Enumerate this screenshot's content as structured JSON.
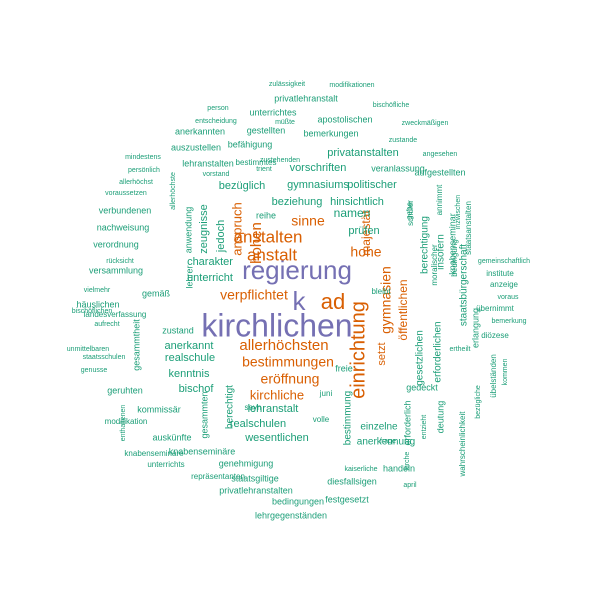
{
  "colors": {
    "large": "#7570B3",
    "medium": "#D95F02",
    "small": "#1B9E77"
  },
  "words": [
    {
      "text": "kirchlichen",
      "tier": "large"
    },
    {
      "text": "regierung",
      "tier": "large"
    },
    {
      "text": "k",
      "tier": "large"
    },
    {
      "text": "ad",
      "tier": "medium"
    },
    {
      "text": "einrichtung",
      "tier": "medium"
    },
    {
      "text": "anstalt",
      "tier": "medium"
    },
    {
      "text": "anstalten",
      "tier": "medium"
    },
    {
      "text": "hohen",
      "tier": "medium"
    },
    {
      "text": "verpflichtet",
      "tier": "medium"
    },
    {
      "text": "allerhöchsten",
      "tier": "medium"
    },
    {
      "text": "bestimmungen",
      "tier": "medium"
    },
    {
      "text": "eröffnung",
      "tier": "medium"
    },
    {
      "text": "gymnasien",
      "tier": "medium"
    },
    {
      "text": "kirchliche",
      "tier": "medium"
    },
    {
      "text": "sinne",
      "tier": "medium"
    },
    {
      "text": "hohe",
      "tier": "medium"
    },
    {
      "text": "anspruch",
      "tier": "medium"
    },
    {
      "text": "majestät",
      "tier": "medium"
    },
    {
      "text": "öffentlichen",
      "tier": "medium"
    },
    {
      "text": "setzt",
      "tier": "medium"
    },
    {
      "text": "gymnasiums",
      "tier": "small"
    },
    {
      "text": "beziehung",
      "tier": "small"
    },
    {
      "text": "hinsichtlich",
      "tier": "small"
    },
    {
      "text": "namen",
      "tier": "small"
    },
    {
      "text": "vorschriften",
      "tier": "small"
    },
    {
      "text": "privatanstalten",
      "tier": "small"
    },
    {
      "text": "politischer",
      "tier": "small"
    },
    {
      "text": "bezüglich",
      "tier": "small"
    },
    {
      "text": "unterricht",
      "tier": "small"
    },
    {
      "text": "charakter",
      "tier": "small"
    },
    {
      "text": "jedoch",
      "tier": "small"
    },
    {
      "text": "zeugnisse",
      "tier": "small"
    },
    {
      "text": "prüfen",
      "tier": "small"
    },
    {
      "text": "anerkannt",
      "tier": "small"
    },
    {
      "text": "realschule",
      "tier": "small"
    },
    {
      "text": "kenntnis",
      "tier": "small"
    },
    {
      "text": "bischof",
      "tier": "small"
    },
    {
      "text": "lehranstalt",
      "tier": "small"
    },
    {
      "text": "realschulen",
      "tier": "small"
    },
    {
      "text": "wesentlichen",
      "tier": "small"
    },
    {
      "text": "bestimmung",
      "tier": "small"
    },
    {
      "text": "berechtigt",
      "tier": "small"
    },
    {
      "text": "einzelne",
      "tier": "small"
    },
    {
      "text": "anerkennung",
      "tier": "small"
    },
    {
      "text": "gesetzlichen",
      "tier": "small"
    },
    {
      "text": "erforderlichen",
      "tier": "small"
    },
    {
      "text": "berechtigung",
      "tier": "small"
    },
    {
      "text": "staatsbürgerschaft",
      "tier": "small"
    },
    {
      "text": "insofern",
      "tier": "small"
    },
    {
      "text": "verbundenen",
      "tier": "small"
    },
    {
      "text": "nachweisung",
      "tier": "small"
    },
    {
      "text": "verordnung",
      "tier": "small"
    },
    {
      "text": "versammlung",
      "tier": "small"
    },
    {
      "text": "häuslichen",
      "tier": "small"
    },
    {
      "text": "gemäß",
      "tier": "small"
    },
    {
      "text": "zustand",
      "tier": "small"
    },
    {
      "text": "kommissär",
      "tier": "small"
    },
    {
      "text": "auskünfte",
      "tier": "small"
    },
    {
      "text": "knabenseminäre",
      "tier": "small"
    },
    {
      "text": "genehmigung",
      "tier": "small"
    },
    {
      "text": "staatsgiltige",
      "tier": "small"
    },
    {
      "text": "privatlehranstalten",
      "tier": "small"
    },
    {
      "text": "diesfallsigen",
      "tier": "small"
    },
    {
      "text": "festgesetzt",
      "tier": "small"
    },
    {
      "text": "bedingungen",
      "tier": "small"
    },
    {
      "text": "lehrgegenständen",
      "tier": "small"
    },
    {
      "text": "handeln",
      "tier": "small"
    },
    {
      "text": "erlangung",
      "tier": "small"
    },
    {
      "text": "deutung",
      "tier": "small"
    },
    {
      "text": "gedeckt",
      "tier": "small"
    },
    {
      "text": "lehrer",
      "tier": "small"
    },
    {
      "text": "anwendung",
      "tier": "small"
    },
    {
      "text": "befähigung",
      "tier": "small"
    },
    {
      "text": "auszustellen",
      "tier": "small"
    },
    {
      "text": "lehranstalten",
      "tier": "small"
    },
    {
      "text": "unterrichtes",
      "tier": "small"
    },
    {
      "text": "apostolischen",
      "tier": "small"
    },
    {
      "text": "anerkannten",
      "tier": "small"
    },
    {
      "text": "gestellten",
      "tier": "small"
    },
    {
      "text": "bemerkungen",
      "tier": "small"
    },
    {
      "text": "privatlehranstalt",
      "tier": "small"
    },
    {
      "text": "veranlassung",
      "tier": "small"
    },
    {
      "text": "aufgestellten",
      "tier": "small"
    },
    {
      "text": "reihe",
      "tier": "small"
    },
    {
      "text": "bestimmtes",
      "tier": "small"
    },
    {
      "text": "zulässigkeit",
      "tier": "small"
    },
    {
      "text": "modifikationen",
      "tier": "small"
    },
    {
      "text": "person",
      "tier": "small"
    },
    {
      "text": "bischöfliche",
      "tier": "small"
    },
    {
      "text": "entscheidung",
      "tier": "small"
    },
    {
      "text": "müßte",
      "tier": "small"
    },
    {
      "text": "zweckmäßigen",
      "tier": "small"
    },
    {
      "text": "zustande",
      "tier": "small"
    },
    {
      "text": "mindestens",
      "tier": "small"
    },
    {
      "text": "zustehenden",
      "tier": "small"
    },
    {
      "text": "angesehen",
      "tier": "small"
    },
    {
      "text": "persönlich",
      "tier": "small"
    },
    {
      "text": "trient",
      "tier": "small"
    },
    {
      "text": "vorstand",
      "tier": "small"
    },
    {
      "text": "allerhöchst",
      "tier": "small"
    },
    {
      "text": "allerhöchste",
      "tier": "small"
    },
    {
      "text": "voraussetzen",
      "tier": "small"
    },
    {
      "text": "schüler",
      "tier": "small"
    },
    {
      "text": "gebe",
      "tier": "small"
    },
    {
      "text": "annimmt",
      "tier": "small"
    },
    {
      "text": "inzwischen",
      "tier": "small"
    },
    {
      "text": "knabenseminar",
      "tier": "small"
    },
    {
      "text": "staatsanstalten",
      "tier": "small"
    },
    {
      "text": "gemeinschaftlich",
      "tier": "small"
    },
    {
      "text": "institute",
      "tier": "small"
    },
    {
      "text": "anzeige",
      "tier": "small"
    },
    {
      "text": "voraus",
      "tier": "small"
    },
    {
      "text": "übernimmt",
      "tier": "small"
    },
    {
      "text": "bemerkung",
      "tier": "small"
    },
    {
      "text": "diözese",
      "tier": "small"
    },
    {
      "text": "kommen",
      "tier": "small"
    },
    {
      "text": "übelständen",
      "tier": "small"
    },
    {
      "text": "bezügliche",
      "tier": "small"
    },
    {
      "text": "wahrscheinlichkeit",
      "tier": "small"
    },
    {
      "text": "moralischer",
      "tier": "small"
    },
    {
      "text": "bedingung",
      "tier": "small"
    },
    {
      "text": "ertheilt",
      "tier": "small"
    },
    {
      "text": "erforderlich",
      "tier": "small"
    },
    {
      "text": "entzieht",
      "tier": "small"
    },
    {
      "text": "frage",
      "tier": "small"
    },
    {
      "text": "kirche",
      "tier": "small"
    },
    {
      "text": "kaiserliche",
      "tier": "small"
    },
    {
      "text": "april",
      "tier": "small"
    },
    {
      "text": "rücksicht",
      "tier": "small"
    },
    {
      "text": "vielmehr",
      "tier": "small"
    },
    {
      "text": "landesverfassung",
      "tier": "small"
    },
    {
      "text": "bischöflichen",
      "tier": "small"
    },
    {
      "text": "aufrecht",
      "tier": "small"
    },
    {
      "text": "unmittelbaren",
      "tier": "small"
    },
    {
      "text": "staatsschulen",
      "tier": "small"
    },
    {
      "text": "genusse",
      "tier": "small"
    },
    {
      "text": "gesammtheit",
      "tier": "small"
    },
    {
      "text": "geruhten",
      "tier": "small"
    },
    {
      "text": "modifikation",
      "tier": "small"
    },
    {
      "text": "enthaltenen",
      "tier": "small"
    },
    {
      "text": "knabenseminare",
      "tier": "small"
    },
    {
      "text": "unterrichts",
      "tier": "small"
    },
    {
      "text": "repräsentanten",
      "tier": "small"
    },
    {
      "text": "gesammten",
      "tier": "small"
    },
    {
      "text": "seyn",
      "tier": "small"
    },
    {
      "text": "juni",
      "tier": "small"
    },
    {
      "text": "volle",
      "tier": "small"
    },
    {
      "text": "bleibt",
      "tier": "small"
    },
    {
      "text": "freie",
      "tier": "small"
    },
    {
      "text": "z",
      "tier": "small"
    }
  ]
}
